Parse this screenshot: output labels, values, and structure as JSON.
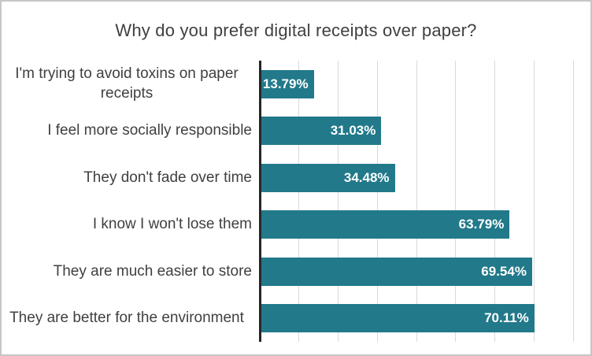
{
  "chart_data": {
    "type": "bar",
    "orientation": "horizontal",
    "title": "Why do you prefer digital receipts over paper?",
    "categories": [
      "I'm trying to avoid toxins on paper receipts",
      "I feel more socially responsible",
      "They don't fade over time",
      "I know I won't lose them",
      "They are much easier to store",
      "They are better for the environment"
    ],
    "values": [
      13.79,
      31.03,
      34.48,
      63.79,
      69.54,
      70.11
    ],
    "value_labels": [
      "13.79%",
      "31.03%",
      "34.48%",
      "63.79%",
      "69.54%",
      "70.11%"
    ],
    "xlabel": "",
    "ylabel": "",
    "xlim": [
      0,
      80
    ],
    "gridline_step": 10,
    "grid": true,
    "legend": false,
    "value_labels_position": "inside-end",
    "colors": {
      "bar": "#21798a",
      "value_label": "#ffffff",
      "axis_line": "#262626",
      "gridline": "#d9d9d9",
      "text": "#404040",
      "border": "#c6c6c6",
      "background": "#ffffff"
    }
  }
}
